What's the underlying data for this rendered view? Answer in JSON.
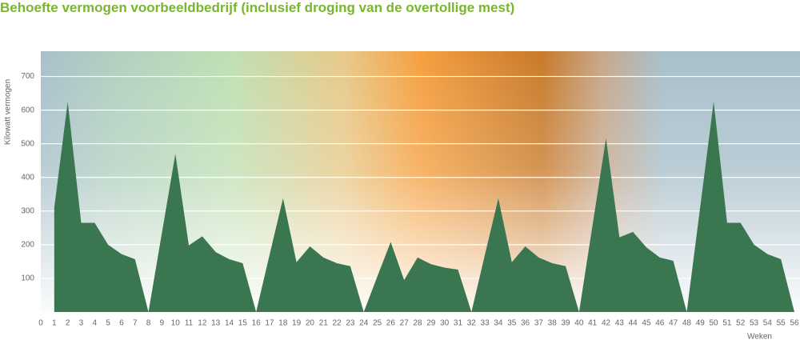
{
  "chart_data": {
    "type": "area",
    "title": "Behoefte vermogen voorbeeldbedrijf (inclusief droging van de overtollige mest)",
    "ylabel": "Kilowatt vermogen",
    "xlabel": "Weken",
    "x": [
      1,
      2,
      3,
      4,
      5,
      6,
      7,
      8,
      9,
      10,
      11,
      12,
      13,
      14,
      15,
      16,
      17,
      18,
      19,
      20,
      21,
      22,
      23,
      24,
      25,
      26,
      27,
      28,
      29,
      30,
      31,
      32,
      33,
      34,
      35,
      36,
      37,
      38,
      39,
      40,
      41,
      42,
      43,
      44,
      45,
      46,
      47,
      48,
      49,
      50,
      51,
      52,
      53,
      54,
      55,
      56
    ],
    "series": [
      {
        "name": "Kilowatt vermogen",
        "color": "#3a7750",
        "values": [
          310,
          625,
          265,
          265,
          200,
          172,
          157,
          0,
          235,
          470,
          198,
          225,
          178,
          157,
          145,
          0,
          170,
          338,
          148,
          195,
          162,
          145,
          136,
          0,
          105,
          208,
          95,
          162,
          142,
          132,
          126,
          0,
          170,
          338,
          148,
          195,
          162,
          145,
          136,
          0,
          258,
          516,
          222,
          238,
          192,
          162,
          152,
          0,
          312,
          625,
          265,
          265,
          200,
          172,
          157,
          0
        ]
      }
    ],
    "xlim": [
      0,
      56
    ],
    "xticks": [
      0,
      1,
      2,
      3,
      4,
      5,
      6,
      7,
      8,
      9,
      10,
      11,
      12,
      13,
      14,
      15,
      16,
      17,
      18,
      19,
      20,
      21,
      22,
      23,
      24,
      25,
      26,
      27,
      28,
      29,
      30,
      31,
      32,
      33,
      34,
      35,
      36,
      37,
      38,
      39,
      40,
      41,
      42,
      43,
      44,
      45,
      46,
      47,
      48,
      49,
      50,
      51,
      52,
      53,
      54,
      55,
      56
    ],
    "ylim": [
      0,
      775
    ],
    "yticks": [
      100,
      200,
      300,
      400,
      500,
      600,
      700
    ],
    "grid": true
  }
}
